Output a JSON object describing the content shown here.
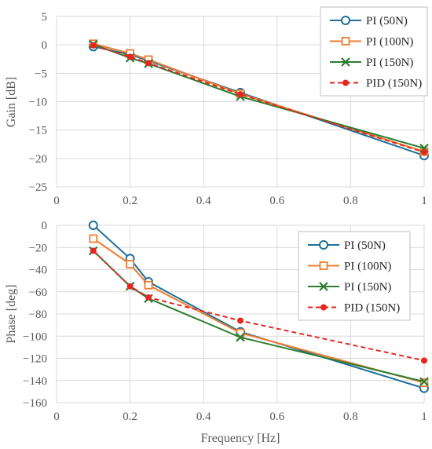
{
  "chart_data": [
    {
      "type": "line",
      "title": "",
      "xlabel": "",
      "ylabel": "Gain [dB]",
      "xlim": [
        0,
        1
      ],
      "ylim": [
        -25,
        5
      ],
      "xticks": [
        "0",
        "0.2",
        "0.4",
        "0.6",
        "0.8",
        "1"
      ],
      "yticks": [
        "5",
        "0",
        "−5",
        "−10",
        "−15",
        "−20",
        "−25"
      ],
      "grid": true,
      "legend_position": "top-right",
      "series": [
        {
          "name": "PI (50N)",
          "color": "#1f6f9a",
          "marker": "circle",
          "dash": "solid",
          "x": [
            0.1,
            0.2,
            0.25,
            0.5,
            1
          ],
          "y": [
            -0.3,
            -1.7,
            -2.8,
            -8.4,
            -19.5
          ]
        },
        {
          "name": "PI (100N)",
          "color": "#ed7d31",
          "marker": "square",
          "dash": "solid",
          "x": [
            0.1,
            0.2,
            0.25,
            0.5,
            1
          ],
          "y": [
            0.2,
            -1.5,
            -2.6,
            -8.6,
            -18.8
          ]
        },
        {
          "name": "PI (150N)",
          "color": "#2e7d32",
          "marker": "x",
          "dash": "solid",
          "x": [
            0.1,
            0.2,
            0.25,
            0.5,
            1
          ],
          "y": [
            0.1,
            -2.3,
            -3.3,
            -9.1,
            -18.2
          ]
        },
        {
          "name": "PID (150N)",
          "color": "#e8261e",
          "marker": "dot",
          "dash": "dashed",
          "x": [
            0.1,
            0.2,
            0.25,
            0.5,
            1
          ],
          "y": [
            -0.1,
            -2.1,
            -3.2,
            -8.7,
            -18.9
          ]
        }
      ]
    },
    {
      "type": "line",
      "title": "",
      "xlabel": "Frequency [Hz]",
      "ylabel": "Phase  [deg]",
      "xlim": [
        0,
        1
      ],
      "ylim": [
        -160,
        0
      ],
      "xticks": [
        "0",
        "0.2",
        "0.4",
        "0.6",
        "0.8",
        "1"
      ],
      "yticks": [
        "0",
        "−20",
        "−40",
        "−60",
        "−80",
        "−100",
        "−120",
        "−140",
        "−160"
      ],
      "grid": true,
      "legend_position": "top-right",
      "series": [
        {
          "name": "PI (50N)",
          "color": "#1f6f9a",
          "marker": "circle",
          "dash": "solid",
          "x": [
            0.1,
            0.2,
            0.25,
            0.5,
            1
          ],
          "y": [
            0,
            -30,
            -51,
            -96,
            -147
          ]
        },
        {
          "name": "PI (100N)",
          "color": "#ed7d31",
          "marker": "square",
          "dash": "solid",
          "x": [
            0.1,
            0.2,
            0.25,
            0.5,
            1
          ],
          "y": [
            -12,
            -35,
            -54,
            -97,
            -142
          ]
        },
        {
          "name": "PI (150N)",
          "color": "#2e7d32",
          "marker": "x",
          "dash": "solid",
          "x": [
            0.1,
            0.2,
            0.25,
            0.5,
            1
          ],
          "y": [
            -23,
            -55,
            -66,
            -101,
            -141
          ]
        },
        {
          "name": "PID (150N)",
          "color": "#e8261e",
          "marker": "dot",
          "dash": "dashed",
          "x": [
            0.1,
            0.2,
            0.25,
            0.5,
            1
          ],
          "y": [
            -23,
            -55,
            -65,
            -86,
            -122
          ]
        }
      ]
    }
  ]
}
